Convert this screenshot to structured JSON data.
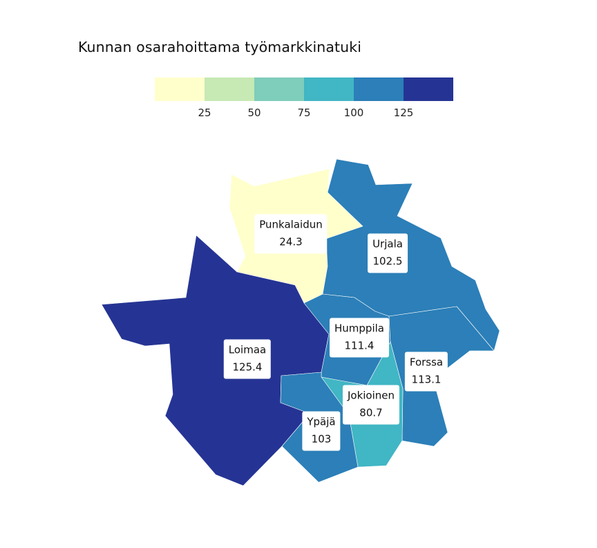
{
  "title": "Kunnan osarahoittama työmarkkinatuki",
  "legend": {
    "colors": [
      "#ffffcc",
      "#c7e9b4",
      "#7fcdbb",
      "#41b6c4",
      "#2c7fb8",
      "#253494"
    ],
    "ticks": [
      "25",
      "50",
      "75",
      "100",
      "125"
    ]
  },
  "chart_data": {
    "type": "choropleth",
    "title": "Kunnan osarahoittama työmarkkinatuki",
    "bins": [
      0,
      25,
      50,
      75,
      100,
      125
    ],
    "regions": [
      {
        "name": "Punkalaidun",
        "value": "24.3"
      },
      {
        "name": "Urjala",
        "value": "102.5"
      },
      {
        "name": "Loimaa",
        "value": "125.4"
      },
      {
        "name": "Humppila",
        "value": "111.4"
      },
      {
        "name": "Forssa",
        "value": "113.1"
      },
      {
        "name": "Jokioinen",
        "value": "80.7"
      },
      {
        "name": "Ypäjä",
        "value": "103"
      }
    ]
  }
}
